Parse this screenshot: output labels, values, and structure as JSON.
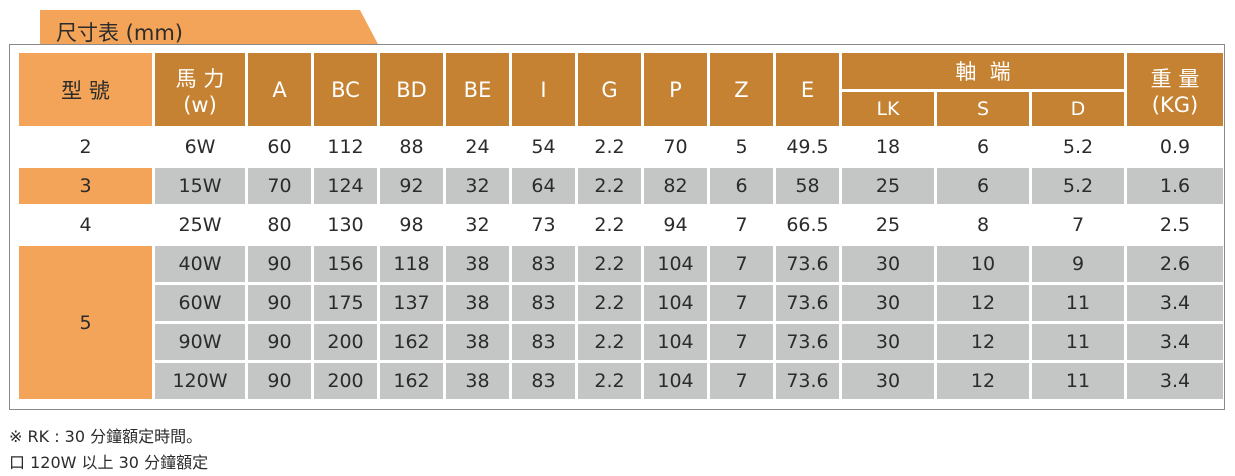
{
  "title": "尺寸表 (mm)",
  "header": {
    "model": "型 號",
    "power": "馬 力",
    "power_unit": "(w)",
    "A": "A",
    "BC": "BC",
    "BD": "BD",
    "BE": "BE",
    "I": "I",
    "G": "G",
    "P": "P",
    "Z": "Z",
    "E": "E",
    "shaft": "軸  端",
    "LK": "LK",
    "S": "S",
    "D": "D",
    "weight": "重 量",
    "weight_unit": "(KG)"
  },
  "rows": [
    {
      "model": "2",
      "power": "6W",
      "A": "60",
      "BC": "112",
      "BD": "88",
      "BE": "24",
      "I": "54",
      "G": "2.2",
      "P": "70",
      "Z": "5",
      "E": "49.5",
      "LK": "18",
      "S": "6",
      "D": "5.2",
      "weight": "0.9"
    },
    {
      "model": "3",
      "power": "15W",
      "A": "70",
      "BC": "124",
      "BD": "92",
      "BE": "32",
      "I": "64",
      "G": "2.2",
      "P": "82",
      "Z": "6",
      "E": "58",
      "LK": "25",
      "S": "6",
      "D": "5.2",
      "weight": "1.6"
    },
    {
      "model": "4",
      "power": "25W",
      "A": "80",
      "BC": "130",
      "BD": "98",
      "BE": "32",
      "I": "73",
      "G": "2.2",
      "P": "94",
      "Z": "7",
      "E": "66.5",
      "LK": "25",
      "S": "8",
      "D": "7",
      "weight": "2.5"
    },
    {
      "model": "5",
      "power": "40W",
      "A": "90",
      "BC": "156",
      "BD": "118",
      "BE": "38",
      "I": "83",
      "G": "2.2",
      "P": "104",
      "Z": "7",
      "E": "73.6",
      "LK": "30",
      "S": "10",
      "D": "9",
      "weight": "2.6"
    },
    {
      "model": "5",
      "power": "60W",
      "A": "90",
      "BC": "175",
      "BD": "137",
      "BE": "38",
      "I": "83",
      "G": "2.2",
      "P": "104",
      "Z": "7",
      "E": "73.6",
      "LK": "30",
      "S": "12",
      "D": "11",
      "weight": "3.4"
    },
    {
      "model": "5",
      "power": "90W",
      "A": "90",
      "BC": "200",
      "BD": "162",
      "BE": "38",
      "I": "83",
      "G": "2.2",
      "P": "104",
      "Z": "7",
      "E": "73.6",
      "LK": "30",
      "S": "12",
      "D": "11",
      "weight": "3.4"
    },
    {
      "model": "5",
      "power": "120W",
      "A": "90",
      "BC": "200",
      "BD": "162",
      "BE": "38",
      "I": "83",
      "G": "2.2",
      "P": "104",
      "Z": "7",
      "E": "73.6",
      "LK": "30",
      "S": "12",
      "D": "11",
      "weight": "3.4"
    }
  ],
  "notes": [
    "※ RK : 30 分鐘額定時間。",
    "口 120W 以上 30 分鐘額定"
  ],
  "colors": {
    "header_brown": "#c48232",
    "model_orange": "#f3a458",
    "row_grey": "#c4c6c6"
  }
}
